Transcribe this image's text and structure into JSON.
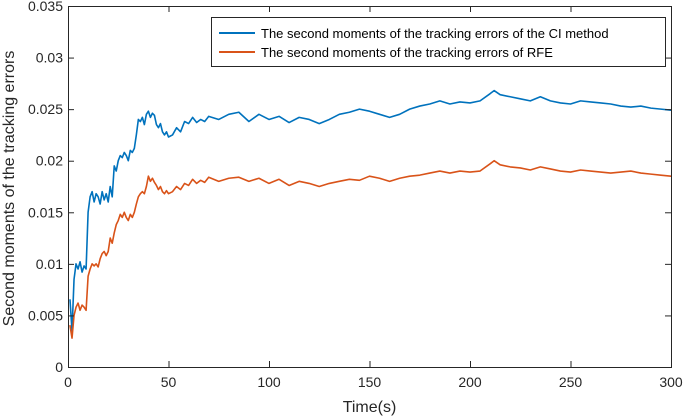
{
  "chart_data": {
    "type": "line",
    "xlabel": "Time(s)",
    "ylabel": "Second moments of the tracking errors",
    "xlim": [
      0,
      300
    ],
    "ylim": [
      0,
      0.035
    ],
    "xticks": [
      0,
      50,
      100,
      150,
      200,
      250,
      300
    ],
    "yticks": [
      0,
      0.005,
      0.01,
      0.015,
      0.02,
      0.025,
      0.03,
      0.035
    ],
    "xtick_labels": [
      "0",
      "50",
      "100",
      "150",
      "200",
      "250",
      "300"
    ],
    "ytick_labels": [
      "0",
      "0.005",
      "0.01",
      "0.015",
      "0.02",
      "0.025",
      "0.03",
      "0.035"
    ],
    "grid": false,
    "legend_position": "top-right",
    "series": [
      {
        "name": "The second moments of the tracking errors of the CI method",
        "color": "#0072bd",
        "x": [
          1,
          2,
          3,
          4,
          5,
          6,
          7,
          8,
          9,
          10,
          11,
          12,
          13,
          14,
          15,
          16,
          17,
          18,
          19,
          20,
          21,
          22,
          23,
          24,
          25,
          26,
          27,
          28,
          29,
          30,
          31,
          32,
          33,
          34,
          35,
          36,
          37,
          38,
          39,
          40,
          41,
          42,
          43,
          44,
          45,
          46,
          47,
          48,
          49,
          50,
          52,
          54,
          56,
          58,
          60,
          62,
          64,
          66,
          68,
          70,
          75,
          80,
          85,
          90,
          95,
          100,
          105,
          110,
          115,
          120,
          125,
          130,
          135,
          140,
          145,
          150,
          155,
          160,
          165,
          170,
          175,
          180,
          185,
          190,
          195,
          200,
          205,
          210,
          212,
          215,
          220,
          225,
          230,
          235,
          240,
          245,
          250,
          255,
          260,
          265,
          270,
          275,
          280,
          285,
          290,
          295,
          300
        ],
        "y": [
          0.0065,
          0.0035,
          0.0085,
          0.01,
          0.0095,
          0.0102,
          0.0092,
          0.0098,
          0.0095,
          0.015,
          0.0165,
          0.017,
          0.016,
          0.0168,
          0.0165,
          0.0158,
          0.017,
          0.0162,
          0.0168,
          0.016,
          0.0175,
          0.0165,
          0.0195,
          0.019,
          0.02,
          0.0205,
          0.0203,
          0.0208,
          0.0205,
          0.02,
          0.021,
          0.0208,
          0.0212,
          0.0225,
          0.024,
          0.0238,
          0.0242,
          0.0235,
          0.0245,
          0.0248,
          0.0242,
          0.0246,
          0.0244,
          0.0235,
          0.0232,
          0.0236,
          0.0228,
          0.0225,
          0.0228,
          0.0223,
          0.0225,
          0.0232,
          0.0228,
          0.0238,
          0.0236,
          0.0242,
          0.0237,
          0.024,
          0.0238,
          0.0243,
          0.024,
          0.0245,
          0.0247,
          0.0238,
          0.0245,
          0.024,
          0.0243,
          0.0237,
          0.0242,
          0.024,
          0.0236,
          0.024,
          0.0245,
          0.0247,
          0.025,
          0.0248,
          0.0245,
          0.0242,
          0.0245,
          0.025,
          0.0253,
          0.0255,
          0.0258,
          0.0255,
          0.0257,
          0.0256,
          0.0258,
          0.0265,
          0.0268,
          0.0264,
          0.0262,
          0.026,
          0.0258,
          0.0262,
          0.0258,
          0.0256,
          0.0255,
          0.0258,
          0.0257,
          0.0256,
          0.0255,
          0.0253,
          0.0252,
          0.0253,
          0.0251,
          0.025,
          0.0249
        ]
      },
      {
        "name": "The second moments of the tracking errors of RFE",
        "color": "#d95319",
        "x": [
          1,
          2,
          3,
          4,
          5,
          6,
          7,
          8,
          9,
          10,
          11,
          12,
          13,
          14,
          15,
          16,
          17,
          18,
          19,
          20,
          21,
          22,
          23,
          24,
          25,
          26,
          27,
          28,
          29,
          30,
          31,
          32,
          33,
          34,
          35,
          36,
          37,
          38,
          39,
          40,
          41,
          42,
          43,
          44,
          45,
          46,
          47,
          48,
          49,
          50,
          52,
          54,
          56,
          58,
          60,
          62,
          64,
          66,
          68,
          70,
          75,
          80,
          85,
          90,
          95,
          100,
          105,
          110,
          115,
          120,
          125,
          130,
          135,
          140,
          145,
          150,
          155,
          160,
          165,
          170,
          175,
          180,
          185,
          190,
          195,
          200,
          205,
          210,
          212,
          215,
          220,
          225,
          230,
          235,
          240,
          245,
          250,
          255,
          260,
          265,
          270,
          275,
          280,
          285,
          290,
          295,
          300
        ],
        "y": [
          0.004,
          0.0028,
          0.005,
          0.0058,
          0.0062,
          0.0055,
          0.006,
          0.0058,
          0.0055,
          0.0088,
          0.0095,
          0.01,
          0.0098,
          0.01,
          0.0097,
          0.0105,
          0.011,
          0.0112,
          0.0108,
          0.0112,
          0.0125,
          0.012,
          0.013,
          0.0138,
          0.0142,
          0.0148,
          0.0145,
          0.015,
          0.0145,
          0.0142,
          0.0148,
          0.0145,
          0.015,
          0.0158,
          0.0165,
          0.0168,
          0.017,
          0.0168,
          0.0175,
          0.0185,
          0.018,
          0.0183,
          0.0179,
          0.0176,
          0.0172,
          0.0175,
          0.017,
          0.0168,
          0.0171,
          0.0168,
          0.017,
          0.0175,
          0.0172,
          0.0178,
          0.0176,
          0.0182,
          0.0178,
          0.0181,
          0.0179,
          0.0184,
          0.018,
          0.0183,
          0.0184,
          0.018,
          0.0183,
          0.0178,
          0.0182,
          0.0176,
          0.018,
          0.0178,
          0.0175,
          0.0178,
          0.018,
          0.0182,
          0.0181,
          0.0185,
          0.0183,
          0.018,
          0.0183,
          0.0185,
          0.0186,
          0.0188,
          0.019,
          0.0188,
          0.019,
          0.0189,
          0.019,
          0.0197,
          0.02,
          0.0196,
          0.0194,
          0.0193,
          0.0191,
          0.0194,
          0.0192,
          0.019,
          0.0189,
          0.0191,
          0.019,
          0.0189,
          0.0188,
          0.0189,
          0.019,
          0.0188,
          0.0187,
          0.0186,
          0.0185
        ]
      }
    ]
  }
}
